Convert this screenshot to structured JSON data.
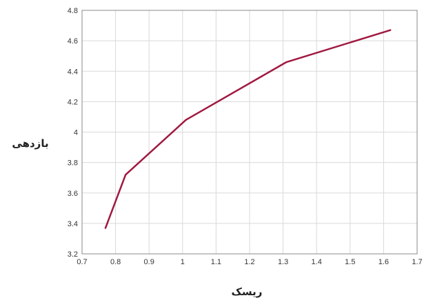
{
  "chart_data": {
    "type": "line",
    "title": "",
    "xlabel": "ریسک",
    "ylabel": "بازدهی",
    "xlim": [
      0.7,
      1.7
    ],
    "ylim": [
      3.2,
      4.8
    ],
    "xticks": [
      0.7,
      0.8,
      0.9,
      1,
      1.1,
      1.2,
      1.3,
      1.4,
      1.5,
      1.6,
      1.7
    ],
    "yticks": [
      3.2,
      3.4,
      3.6,
      3.8,
      4,
      4.2,
      4.4,
      4.6,
      4.8
    ],
    "xtick_labels": [
      "0.7",
      "0.8",
      "0.9",
      "1",
      "1.1",
      "1.2",
      "1.3",
      "1.4",
      "1.5",
      "1.6",
      "1.7"
    ],
    "ytick_labels": [
      "3.2",
      "3.4",
      "3.6",
      "3.8",
      "4",
      "4.2",
      "4.4",
      "4.6",
      "4.8"
    ],
    "grid": true,
    "series": [
      {
        "color": "#a01840",
        "x": [
          0.77,
          0.83,
          1.01,
          1.31,
          1.62
        ],
        "y": [
          3.37,
          3.72,
          4.08,
          4.46,
          4.67
        ]
      }
    ]
  }
}
